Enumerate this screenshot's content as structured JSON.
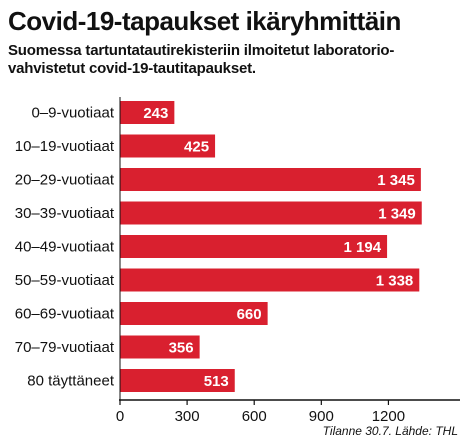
{
  "title": "Covid-19-tapaukset ikäryhmittäin",
  "subtitle_lines": [
    "Suomessa tartuntatautirekisteriin ilmoitetut laboratorio-",
    "vahvistetut covid-19-tautitapaukset."
  ],
  "source": "Tilanne 30.7. Lähde: THL",
  "colors": {
    "bar": "#d9202f",
    "axis": "#111111",
    "label_text": "#ffffff"
  },
  "chart_data": {
    "type": "bar",
    "orientation": "horizontal",
    "categories": [
      "0–9-vuotiaat",
      "10–19-vuotiaat",
      "20–29-vuotiaat",
      "30–39-vuotiaat",
      "40–49-vuotiaat",
      "50–59-vuotiaat",
      "60–69-vuotiaat",
      "70–79-vuotiaat",
      "80 täyttäneet"
    ],
    "values": [
      243,
      425,
      1345,
      1349,
      1194,
      1338,
      660,
      356,
      513
    ],
    "value_labels": [
      "243",
      "425",
      "1 345",
      "1 349",
      "1 194",
      "1 338",
      "660",
      "356",
      "513"
    ],
    "xticks": [
      0,
      300,
      600,
      900,
      1200
    ],
    "xlim": [
      0,
      1520
    ],
    "grid": false,
    "title": "Covid-19-tapaukset ikäryhmittäin"
  }
}
